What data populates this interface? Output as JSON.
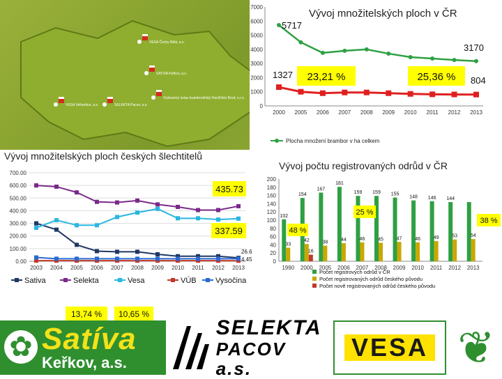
{
  "chart_data": [
    {
      "type": "line",
      "title": "Vývoj množitelských ploch v ČR",
      "categories": [
        "2000",
        "2005",
        "2006",
        "2007",
        "2008",
        "2009",
        "2010",
        "2011",
        "2012",
        "2013"
      ],
      "ylim": [
        0,
        7000
      ],
      "yticks": [
        "0",
        "1000",
        "2000",
        "3000",
        "4000",
        "5000",
        "6000",
        "7000"
      ],
      "series": [
        {
          "name": "Plocha množení brambor v ha celkem",
          "color": "#2ea043",
          "values": [
            5717,
            4500,
            3750,
            3900,
            4000,
            3700,
            3450,
            3350,
            3250,
            3170
          ]
        },
        {
          "name": "",
          "color": "#e02020",
          "values": [
            1327,
            1000,
            900,
            950,
            950,
            900,
            850,
            820,
            810,
            804
          ]
        }
      ],
      "annotations": [
        "5717",
        "3170",
        "1327",
        "804",
        "23,21 %",
        "25,36 %"
      ],
      "legend": "Plocha množení brambor v ha celkem",
      "grid": false
    },
    {
      "type": "line",
      "title": "Vývoj množitelských ploch českých šlechtitelů",
      "categories": [
        "2003",
        "2004",
        "2005",
        "2006",
        "2007",
        "2008",
        "2009",
        "2010",
        "2011",
        "2012",
        "2013"
      ],
      "ylim": [
        0,
        700
      ],
      "yticks": [
        "0.00",
        "100.00",
        "200.00",
        "300.00",
        "400.00",
        "500.00",
        "600.00",
        "700.00"
      ],
      "series": [
        {
          "name": "Sativa",
          "color": "#1f3864",
          "values": [
            300,
            250,
            130,
            80,
            75,
            75,
            55,
            40,
            40,
            40,
            26.65
          ]
        },
        {
          "name": "Selekta",
          "color": "#7a2a8a",
          "values": [
            600,
            590,
            545,
            470,
            465,
            480,
            450,
            430,
            405,
            405,
            435.73
          ]
        },
        {
          "name": "Vesa",
          "color": "#29b6e0",
          "values": [
            265,
            325,
            285,
            285,
            350,
            385,
            415,
            340,
            340,
            330,
            337.59
          ]
        },
        {
          "name": "VÚB",
          "color": "#c0392b",
          "values": [
            5,
            5,
            5,
            5,
            5,
            5,
            5,
            5,
            5,
            5,
            4.45
          ]
        },
        {
          "name": "Vysočina",
          "color": "#2a6ad0",
          "values": [
            30,
            20,
            20,
            20,
            20,
            20,
            20,
            20,
            20,
            20,
            20
          ]
        }
      ],
      "annotations": [
        "435.73",
        "337.59",
        "26.65",
        "4.45",
        "13,74 %",
        "10,65 %"
      ],
      "legend": "bottom",
      "grid": true
    },
    {
      "type": "bar",
      "title": "Vývoj počtu registrovaných odrůd v ČR",
      "categories": [
        "1990",
        "2000",
        "2005",
        "2006",
        "2007",
        "2008",
        "2009",
        "2010",
        "2011",
        "2012",
        "2013"
      ],
      "ylim": [
        0,
        200
      ],
      "yticks": [
        "0",
        "20",
        "40",
        "60",
        "80",
        "100",
        "120",
        "140",
        "160",
        "180",
        "200"
      ],
      "series": [
        {
          "name": "Počet registrových odrůd v ČR",
          "color": "#2ea043",
          "values": [
            102,
            154,
            167,
            181,
            159,
            159,
            155,
            148,
            146,
            144,
            144
          ]
        },
        {
          "name": "Počet registrovaných odrůd českého původu",
          "color": "#c9a800",
          "values": [
            33,
            42,
            38,
            44,
            46,
            45,
            47,
            46,
            49,
            53,
            54
          ]
        },
        {
          "name": "Počet nově registrovaných odrůd českého původu",
          "color": "#c0392b",
          "values": [
            0,
            16,
            0,
            0,
            0,
            0,
            0,
            0,
            0,
            0,
            0
          ]
        }
      ],
      "data_labels": [
        [
          "102",
          "154",
          "167",
          "181",
          "159",
          "159",
          "155",
          "148",
          "146",
          "144",
          ""
        ],
        [
          "33",
          "42",
          "38",
          "44",
          "46",
          "45",
          "47",
          "46",
          "49",
          "53",
          "54"
        ],
        [
          "",
          "16",
          "",
          "",
          "",
          "",
          "",
          "",
          "",
          "",
          ""
        ]
      ],
      "annotations": [
        "48 %",
        "25 %",
        "38 %"
      ],
      "legend": "bottom",
      "grid": false
    }
  ],
  "map": {
    "labels": [
      "VESA Čechy Bělá, a.s.",
      "SATIVA Keřkov, a.s.",
      "Výzkumný ústav bramborářský Havlíčkův Brod, s.r.o.",
      "SELEKTA Pacov, a.s.",
      "VESA Velhartice, a.s."
    ]
  },
  "logos": {
    "sativa": {
      "brand": "Satíva",
      "sub": "Keřkov, a.s."
    },
    "selekta": {
      "brand": "SELEKTA",
      "sub": "PACOV a.s."
    },
    "vesa": {
      "brand": "VESA"
    }
  }
}
